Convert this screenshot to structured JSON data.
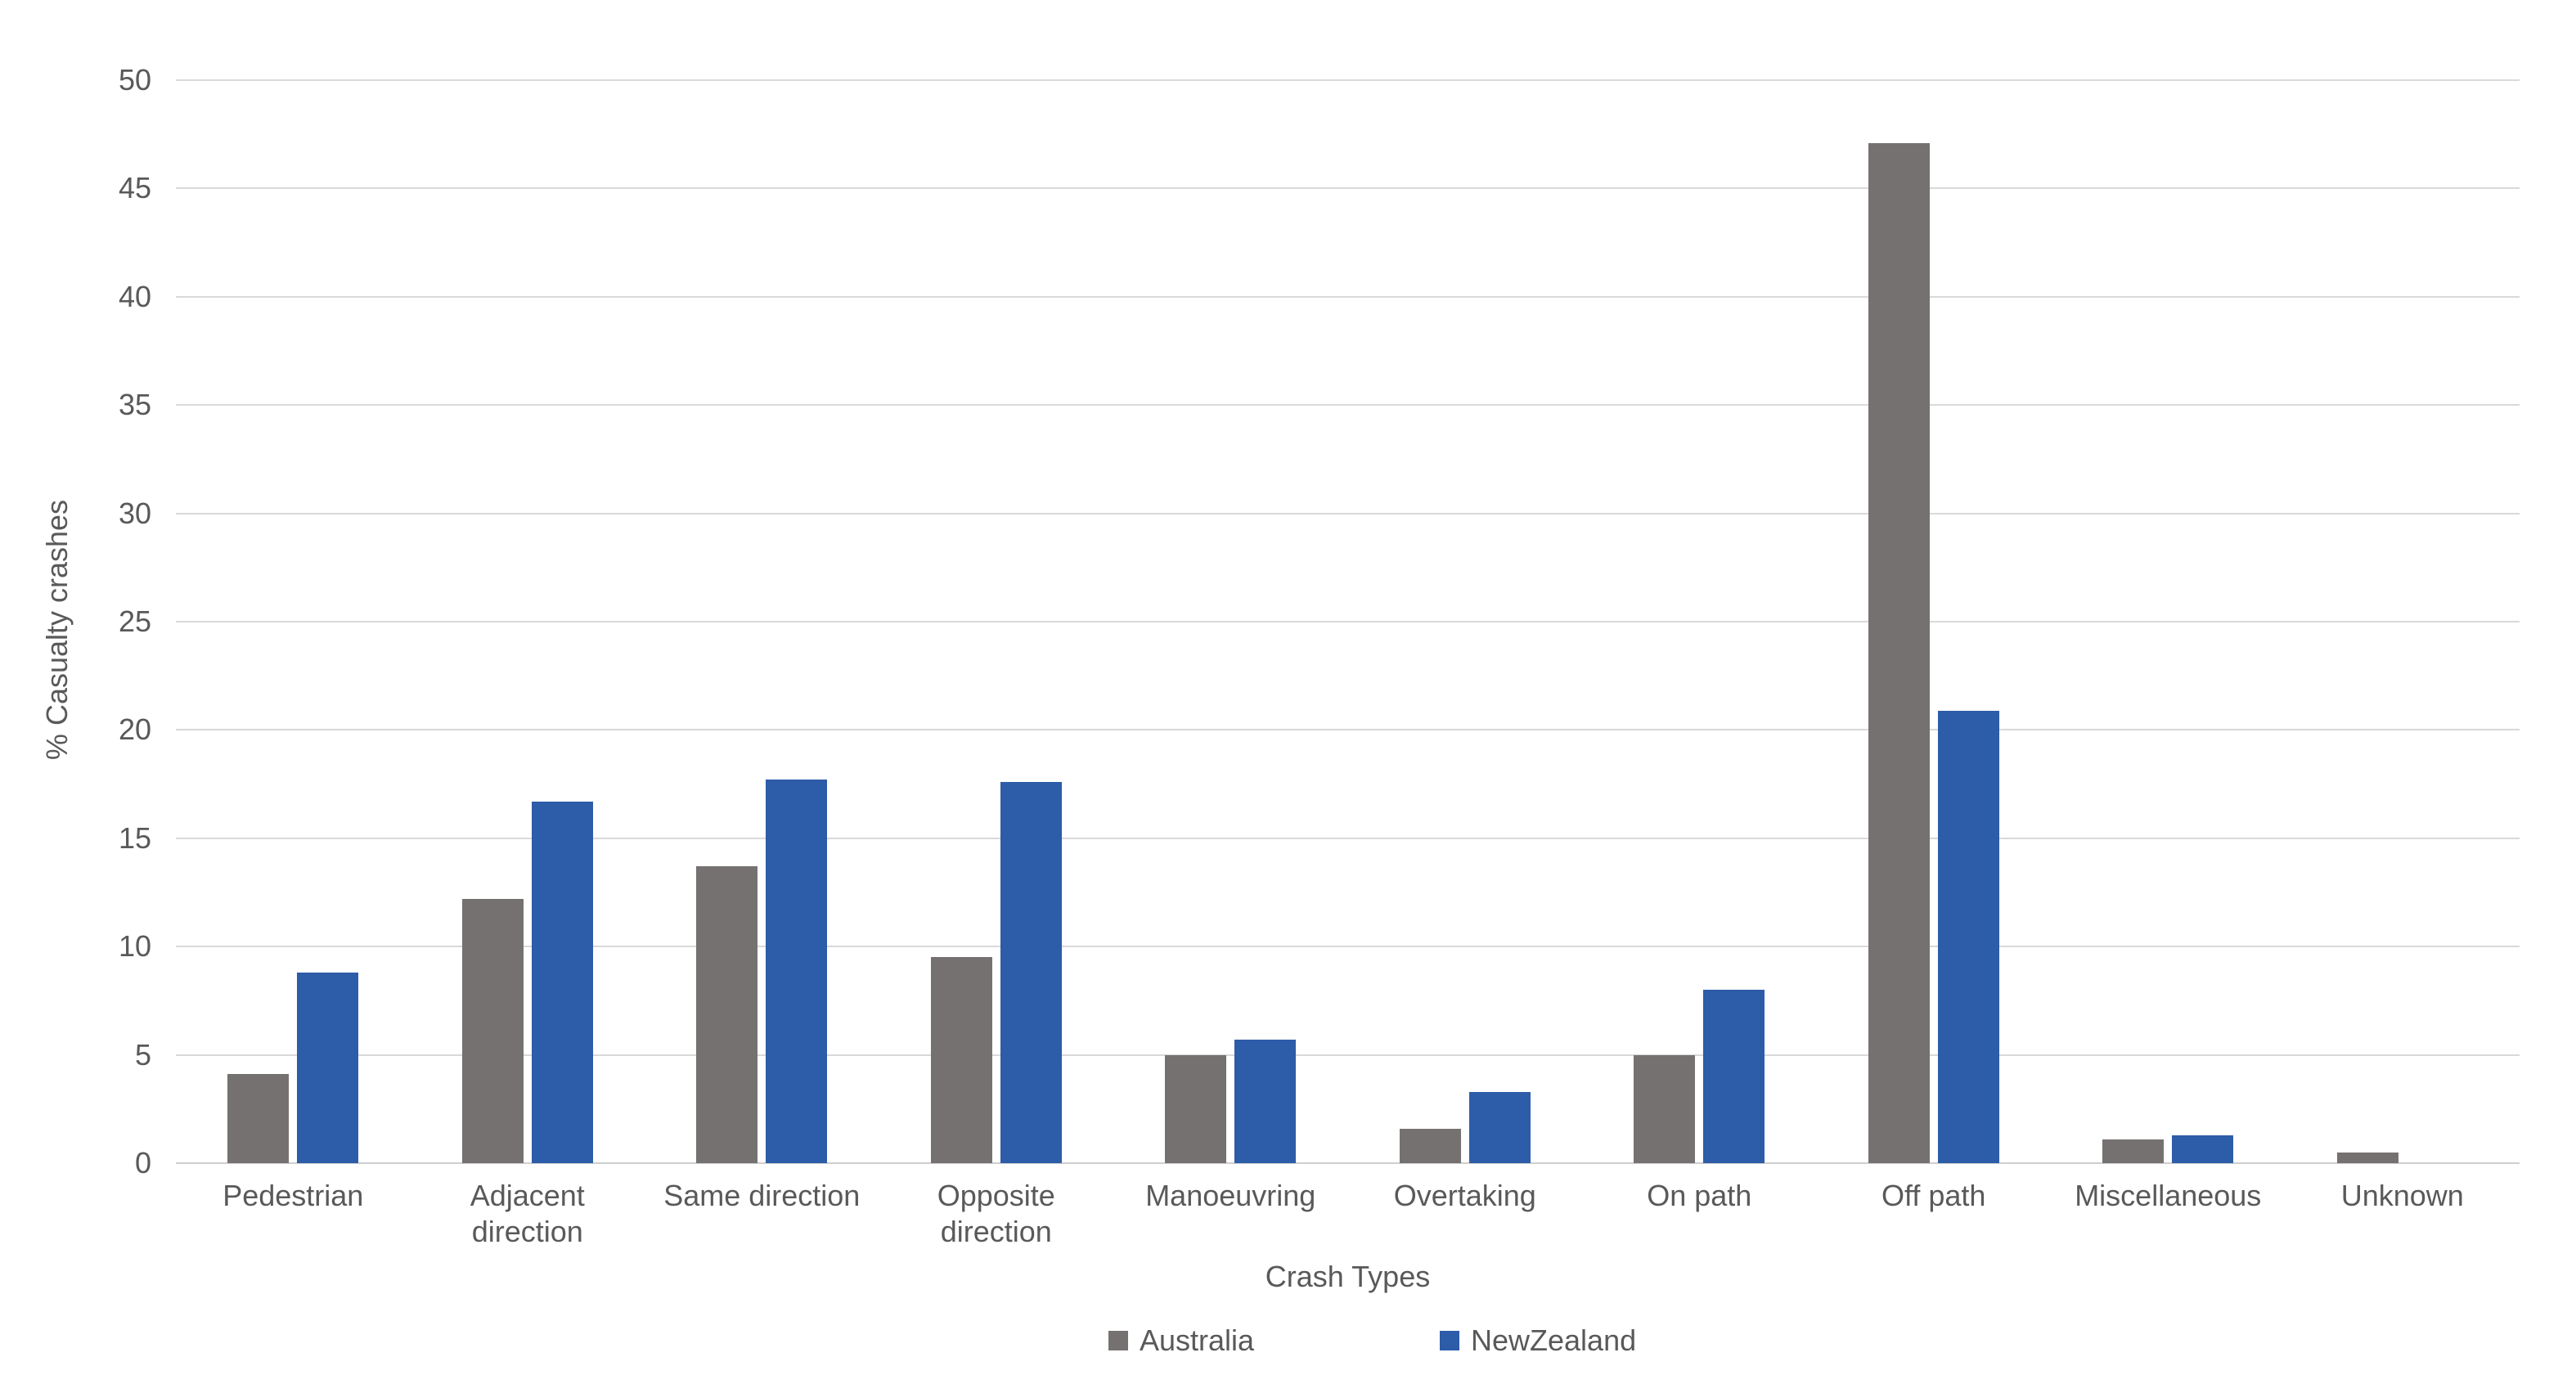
{
  "chart_data": {
    "type": "bar",
    "title": "",
    "xlabel": "Crash Types",
    "ylabel": "% Casualty crashes",
    "ylim": [
      0,
      50
    ],
    "ytick_step": 5,
    "grid": true,
    "legend_position": "bottom",
    "y_ticks": [
      "0",
      "5",
      "10",
      "15",
      "20",
      "25",
      "30",
      "35",
      "40",
      "45",
      "50"
    ],
    "categories": [
      "Pedestrian",
      "Adjacent direction",
      "Same direction",
      "Opposite direction",
      "Manoeuvring",
      "Overtaking",
      "On path",
      "Off path",
      "Miscellaneous",
      "Unknown"
    ],
    "series": [
      {
        "name": "Australia",
        "color": "#767171",
        "values": [
          4.1,
          12.2,
          13.7,
          9.5,
          5.0,
          1.6,
          5.0,
          47.1,
          1.1,
          0.5
        ]
      },
      {
        "name": "NewZealand",
        "color": "#2d5ca8",
        "values": [
          8.8,
          16.7,
          17.7,
          17.6,
          5.7,
          3.3,
          8.0,
          20.9,
          1.3,
          0
        ]
      }
    ]
  }
}
